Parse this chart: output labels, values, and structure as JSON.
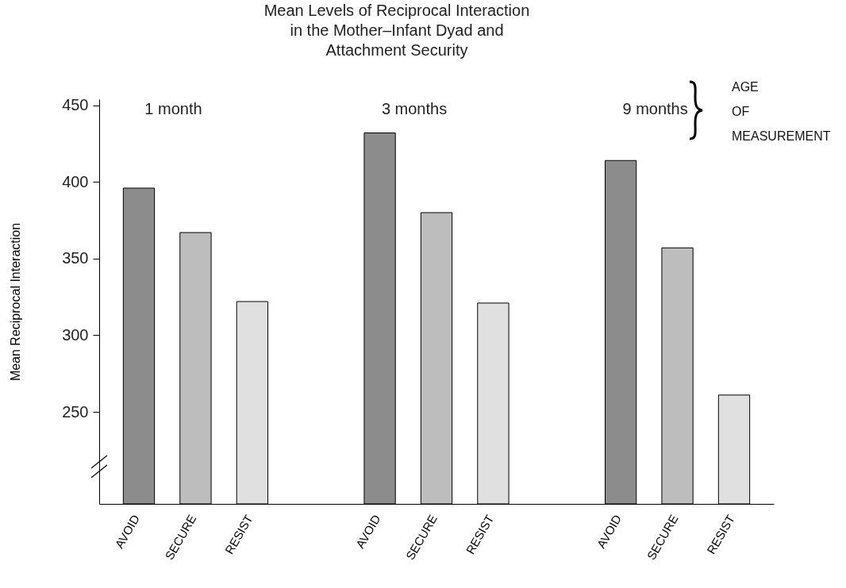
{
  "chart_data": {
    "type": "bar",
    "title": "Mean Levels of Reciprocal Interaction\nin the Mother–Infant Dyad and\nAttachment Security",
    "ylabel": "Mean Reciprocal Interaction",
    "categories": [
      "1 month",
      "3 months",
      "9 months"
    ],
    "series": [
      {
        "name": "AVOID",
        "color": "#8c8c8c",
        "values": [
          396,
          432,
          414
        ]
      },
      {
        "name": "SECURE",
        "color": "#bdbdbd",
        "values": [
          367,
          380,
          357
        ]
      },
      {
        "name": "RESIST",
        "color": "#e0e0e0",
        "values": [
          322,
          321,
          261
        ]
      }
    ],
    "ylim": [
      190,
      454
    ],
    "yticks": [
      250,
      300,
      350,
      400,
      450
    ],
    "grid": false,
    "legend": false,
    "annotations": [
      "AGE OF MEASUREMENT"
    ]
  }
}
